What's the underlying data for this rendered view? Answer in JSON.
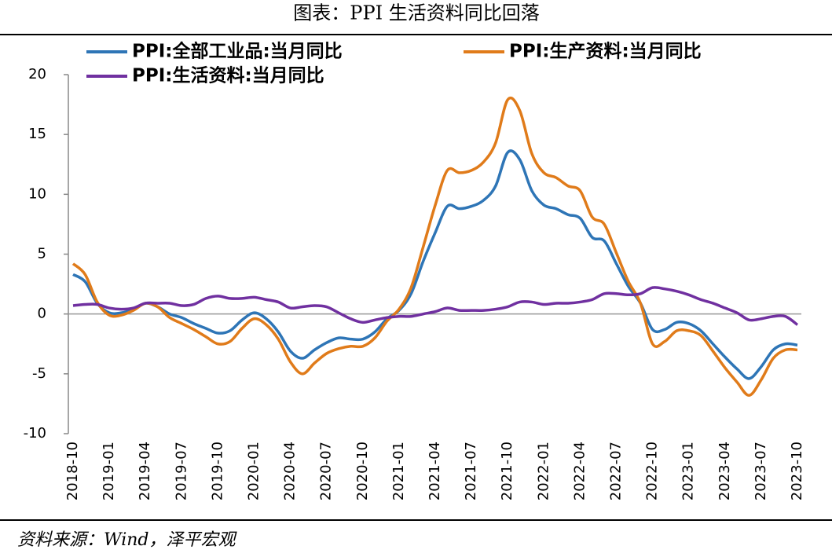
{
  "chart_data": {
    "type": "line",
    "title": "图表：PPI 生活资料同比回落",
    "source": "资料来源：Wind，泽平宏观",
    "categories": [
      "2018-10",
      null,
      null,
      "2019-01",
      null,
      null,
      "2019-04",
      null,
      null,
      "2019-07",
      null,
      null,
      "2019-10",
      null,
      null,
      "2020-01",
      null,
      null,
      "2020-04",
      null,
      null,
      "2020-07",
      null,
      null,
      "2020-10",
      null,
      null,
      "2021-01",
      null,
      null,
      "2021-04",
      null,
      null,
      "2021-07",
      null,
      null,
      "2021-10",
      null,
      null,
      "2022-01",
      null,
      null,
      "2022-04",
      null,
      null,
      "2022-07",
      null,
      null,
      "2022-10",
      null,
      null,
      "2023-01",
      null,
      null,
      "2023-04",
      null,
      null,
      "2023-07",
      null,
      null,
      "2023-10"
    ],
    "series": [
      {
        "name": "PPI:全部工业品:当月同比",
        "color": "#2e75b6",
        "values": [
          3.3,
          2.7,
          0.9,
          0.1,
          0.1,
          0.4,
          0.9,
          0.6,
          0.0,
          -0.3,
          -0.8,
          -1.2,
          -1.6,
          -1.4,
          -0.5,
          0.1,
          -0.4,
          -1.5,
          -3.1,
          -3.7,
          -3.0,
          -2.4,
          -2.0,
          -2.1,
          -2.1,
          -1.5,
          -0.4,
          0.3,
          1.7,
          4.4,
          6.8,
          9.0,
          8.8,
          9.0,
          9.5,
          10.7,
          13.5,
          12.9,
          10.3,
          9.1,
          8.8,
          8.3,
          8.0,
          6.4,
          6.1,
          4.2,
          2.3,
          0.9,
          -1.3,
          -1.3,
          -0.7,
          -0.8,
          -1.4,
          -2.5,
          -3.6,
          -4.6,
          -5.4,
          -4.4,
          -3.0,
          -2.5,
          -2.6
        ]
      },
      {
        "name": "PPI:生产资料:当月同比",
        "color": "#e07b1a",
        "values": [
          4.2,
          3.3,
          1.0,
          -0.1,
          -0.1,
          0.3,
          0.9,
          0.6,
          -0.3,
          -0.8,
          -1.3,
          -1.9,
          -2.5,
          -2.3,
          -1.2,
          -0.4,
          -0.9,
          -2.1,
          -4.0,
          -5.0,
          -4.1,
          -3.3,
          -2.9,
          -2.7,
          -2.7,
          -2.0,
          -0.6,
          0.4,
          2.2,
          5.6,
          9.1,
          12.0,
          11.8,
          12.0,
          12.7,
          14.3,
          17.9,
          17.0,
          13.4,
          11.8,
          11.4,
          10.7,
          10.3,
          8.1,
          7.5,
          5.1,
          2.7,
          0.9,
          -2.5,
          -2.3,
          -1.4,
          -1.4,
          -1.8,
          -3.1,
          -4.5,
          -5.7,
          -6.8,
          -5.5,
          -3.7,
          -3.0,
          -3.0
        ]
      },
      {
        "name": "PPI:生活资料:当月同比",
        "color": "#7030a0",
        "values": [
          0.7,
          0.8,
          0.8,
          0.5,
          0.4,
          0.5,
          0.9,
          0.9,
          0.9,
          0.7,
          0.8,
          1.3,
          1.5,
          1.3,
          1.3,
          1.4,
          1.2,
          1.0,
          0.5,
          0.6,
          0.7,
          0.6,
          0.1,
          -0.4,
          -0.7,
          -0.5,
          -0.3,
          -0.2,
          -0.2,
          0.0,
          0.2,
          0.5,
          0.3,
          0.3,
          0.3,
          0.4,
          0.6,
          1.0,
          1.0,
          0.8,
          0.9,
          0.9,
          1.0,
          1.2,
          1.7,
          1.7,
          1.6,
          1.7,
          2.2,
          2.1,
          1.9,
          1.6,
          1.2,
          0.9,
          0.5,
          0.1,
          -0.5,
          -0.4,
          -0.2,
          -0.2,
          -0.9
        ]
      }
    ],
    "ylim": [
      -10,
      20
    ],
    "yticks": [
      -10,
      -5,
      0,
      5,
      10,
      15,
      20
    ]
  }
}
